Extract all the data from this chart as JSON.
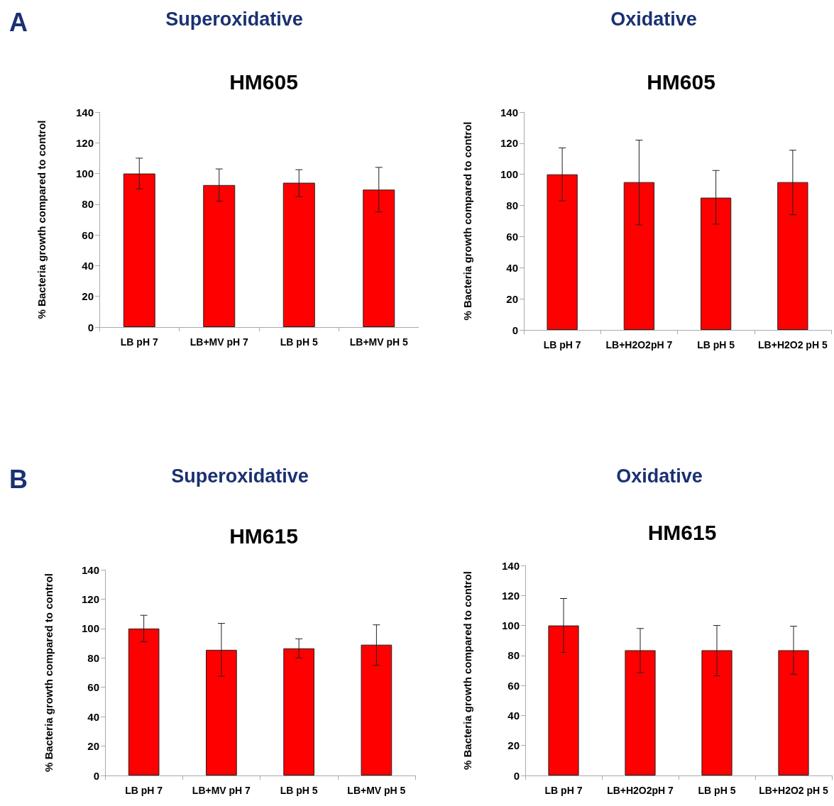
{
  "chart_data": [
    {
      "type": "bar",
      "title": "Superoxidative",
      "subtitle": "HM605",
      "ylabel": "% Bacteria growth compared to control",
      "annotations": [
        "A"
      ],
      "categories": [
        "LB pH 7",
        "LB+MV pH 7",
        "LB pH 5",
        "LB+MV pH 5"
      ],
      "color": "#ff0000",
      "values": [
        100,
        92.5,
        94,
        89.5
      ],
      "errors": [
        [
          90,
          110
        ],
        [
          82,
          103
        ],
        [
          85,
          102.5
        ],
        [
          75,
          104
        ]
      ],
      "ylim": [
        0,
        140
      ],
      "yticks": [
        0,
        20,
        40,
        60,
        80,
        100,
        120,
        140
      ]
    },
    {
      "type": "bar",
      "title": "Oxidative",
      "subtitle": "HM605",
      "ylabel": "% Bacteria growth compared to control",
      "categories": [
        "LB pH 7",
        "LB+H2O2pH 7",
        "LB pH 5",
        "LB+H2O2 pH 5"
      ],
      "color": "#ff0000",
      "values": [
        100,
        95,
        85,
        95
      ],
      "errors": [
        [
          83,
          117
        ],
        [
          67.5,
          122
        ],
        [
          68,
          102.5
        ],
        [
          74,
          115.5
        ]
      ],
      "ylim": [
        0,
        140
      ],
      "yticks": [
        0,
        20,
        40,
        60,
        80,
        100,
        120,
        140
      ]
    },
    {
      "type": "bar",
      "title": "Superoxidative",
      "subtitle": "HM615",
      "ylabel": "% Bacteria growth compared to control",
      "annotations": [
        "B"
      ],
      "categories": [
        "LB pH 7",
        "LB+MV pH 7",
        "LB pH 5",
        "LB+MV pH 5"
      ],
      "color": "#ff0000",
      "values": [
        100,
        85.5,
        86.5,
        89
      ],
      "errors": [
        [
          91,
          109
        ],
        [
          67.5,
          103.5
        ],
        [
          80,
          93
        ],
        [
          75,
          102.5
        ]
      ],
      "ylim": [
        0,
        140
      ],
      "yticks": [
        0,
        20,
        40,
        60,
        80,
        100,
        120,
        140
      ]
    },
    {
      "type": "bar",
      "title": "Oxidative",
      "subtitle": "HM615",
      "ylabel": "% Bacteria growth compared to control",
      "categories": [
        "LB pH 7",
        "LB+H2O2pH 7",
        "LB pH 5",
        "LB+H2O2 pH 5"
      ],
      "color": "#ff0000",
      "values": [
        100,
        83.5,
        83.5,
        83.5
      ],
      "errors": [
        [
          82,
          118
        ],
        [
          68.5,
          98
        ],
        [
          66.5,
          100
        ],
        [
          67.5,
          99.5
        ]
      ],
      "ylim": [
        0,
        140
      ],
      "yticks": [
        0,
        20,
        40,
        60,
        80,
        100,
        120,
        140
      ]
    }
  ]
}
